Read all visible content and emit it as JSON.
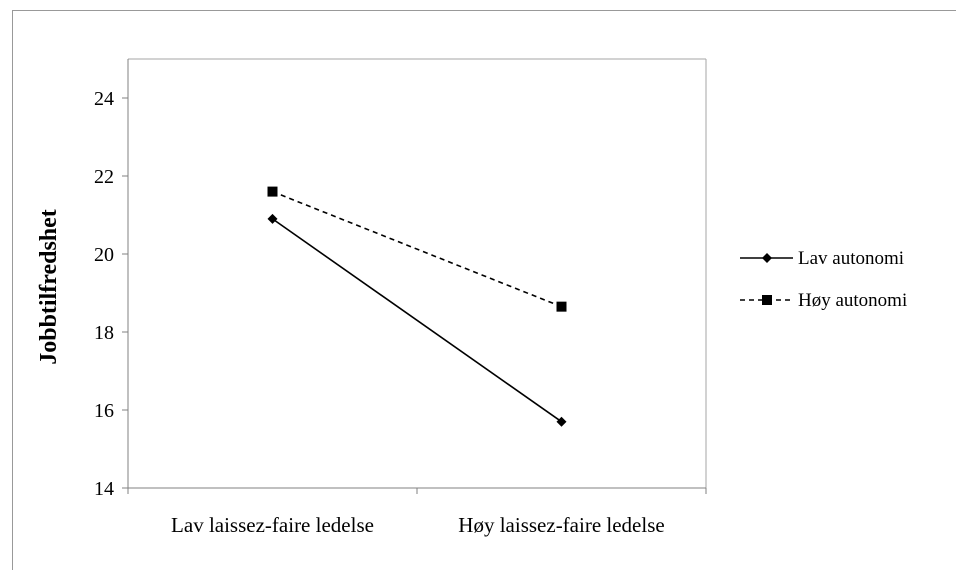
{
  "chart_data": {
    "type": "line",
    "title": "",
    "xlabel": "",
    "ylabel": "Jobbtilfredshet",
    "categories": [
      "Lav laissez-faire ledelse",
      "Høy laissez-faire ledelse"
    ],
    "ylim": [
      14,
      25
    ],
    "yticks": [
      14,
      16,
      18,
      20,
      22,
      24
    ],
    "grid": false,
    "legend_position": "right",
    "series": [
      {
        "name": "Lav autonomi",
        "values": [
          20.9,
          15.7
        ],
        "marker": "diamond",
        "line_style": "solid",
        "color": "#000000"
      },
      {
        "name": "Høy autonomi",
        "values": [
          21.6,
          18.65
        ],
        "marker": "square",
        "line_style": "dashed",
        "color": "#000000"
      }
    ]
  }
}
